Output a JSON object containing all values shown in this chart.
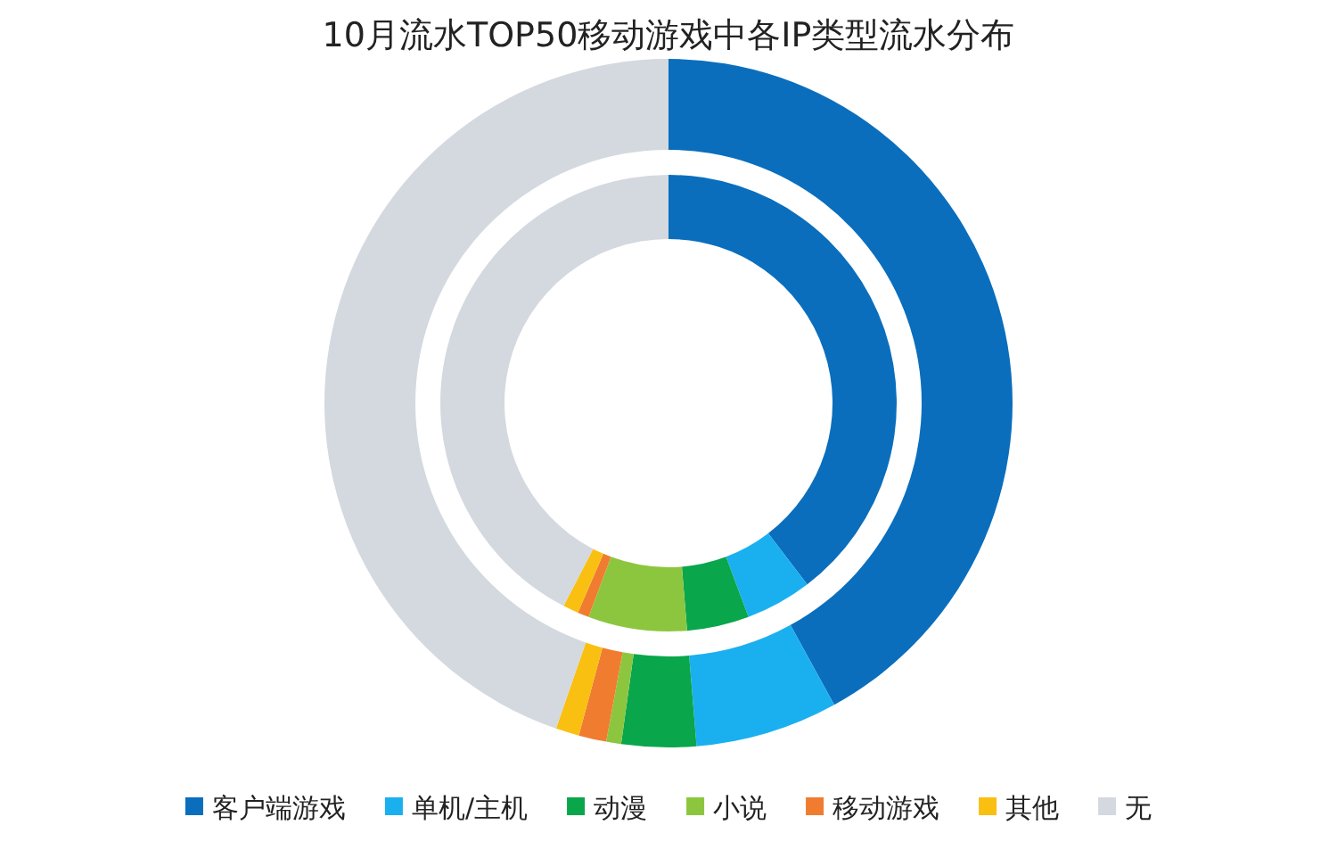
{
  "chart_data": {
    "type": "donut",
    "title": "10月流水TOP50移动游戏中各IP类型流水分布",
    "categories": [
      "客户端游戏",
      "单机/主机",
      "动漫",
      "小说",
      "移动游戏",
      "其他",
      "无"
    ],
    "colors": [
      "#0a6ebd",
      "#1ab0f0",
      "#0aa64b",
      "#8cc63f",
      "#f07c30",
      "#f9c012",
      "#d4d9df"
    ],
    "series": [
      {
        "values": [
          42,
          6.7,
          3.5,
          0.7,
          1.3,
          1.1,
          44.7
        ]
      },
      {
        "values": [
          39.6,
          4.7,
          4.4,
          7.0,
          0.8,
          1.1,
          42.4
        ]
      }
    ],
    "legend": "bottom"
  }
}
